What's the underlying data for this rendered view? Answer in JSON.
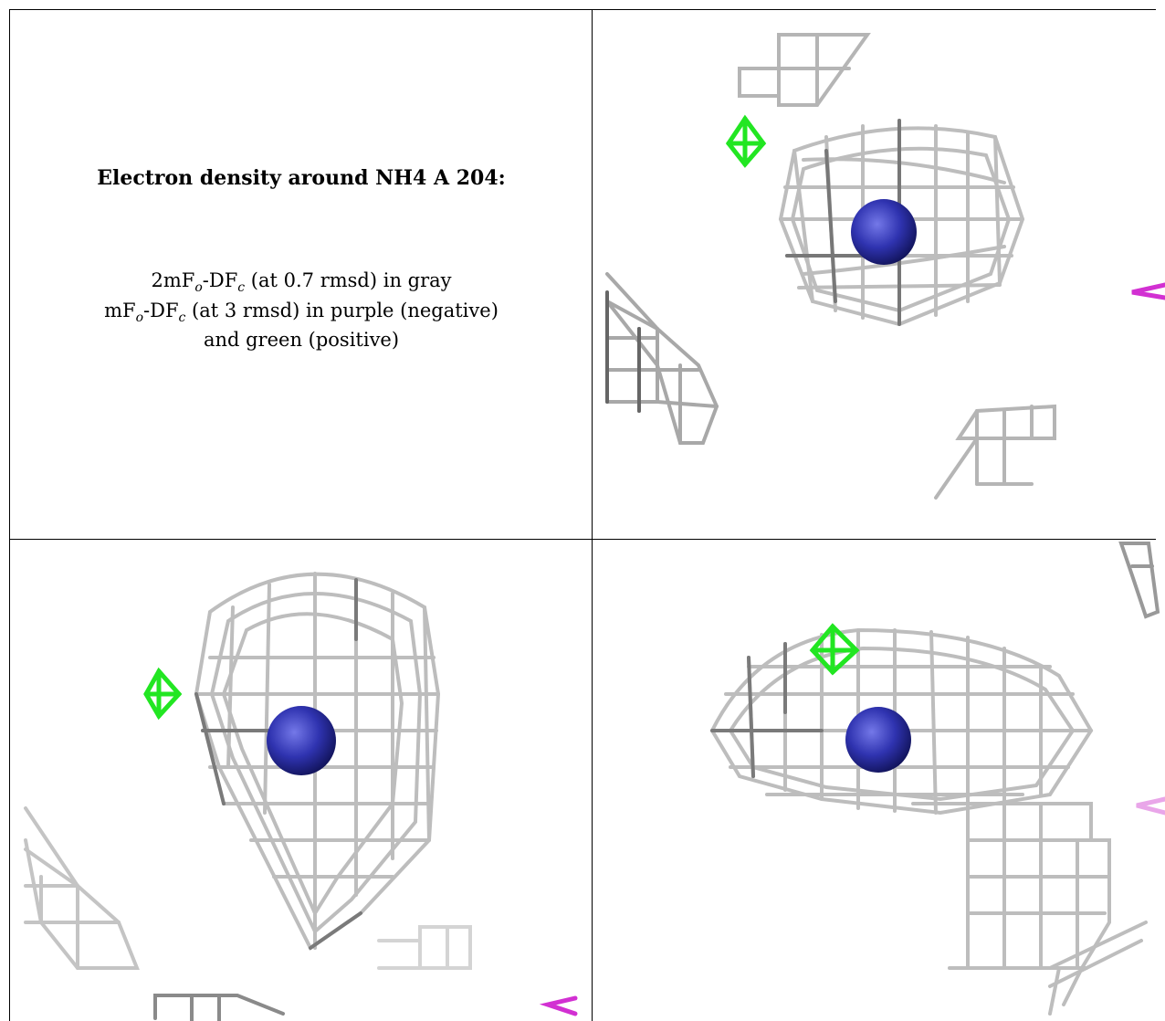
{
  "caption": {
    "title": "Electron density around NH4 A 204:",
    "line1_prefix": "2mF",
    "line1_sub1": "o",
    "line1_mid": "-DF",
    "line1_sub2": "c",
    "line1_suffix": " (at 0.7 rmsd) in gray",
    "line2_prefix": "mF",
    "line2_sub1": "o",
    "line2_mid": "-DF",
    "line2_sub2": "c",
    "line2_suffix": " (at 3 rmsd) in purple (negative)",
    "line3": "and green (positive)"
  },
  "colors": {
    "mesh_gray": "#b9b9b9",
    "mesh_dark": "#6e6e6e",
    "atom_blue": "#2f33b0",
    "positive_green": "#22e622",
    "negative_purple": "#d230d2"
  },
  "views": [
    {
      "name": "view-top-right"
    },
    {
      "name": "view-bottom-left"
    },
    {
      "name": "view-bottom-right"
    }
  ]
}
